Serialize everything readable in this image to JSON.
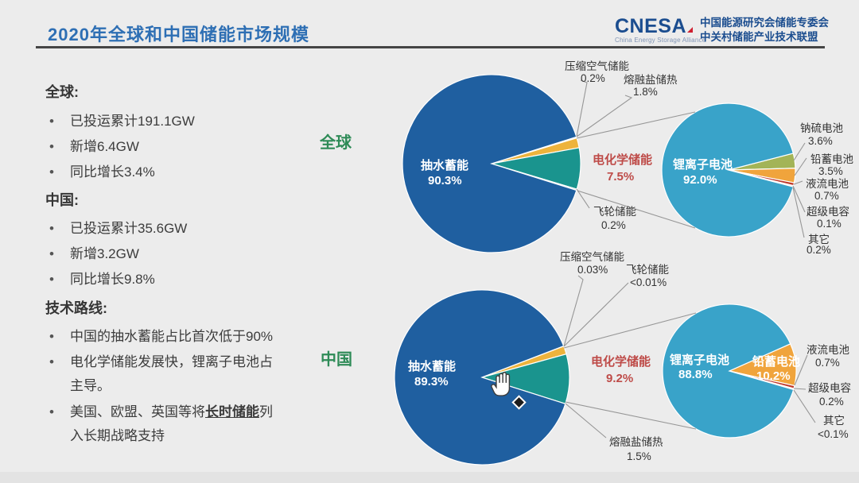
{
  "slide": {
    "title": "2020年全球和中国储能市场规模"
  },
  "logo": {
    "brand": "CNESA",
    "tagline": "China Energy Storage Alliance",
    "org_line1": "中国能源研究会储能专委会",
    "org_line2": "中关村储能产业技术联盟"
  },
  "colors": {
    "title_blue": "#2e6fb4",
    "highlight_red": "#be4b48",
    "group_green": "#2e8b57",
    "pumped_blue": "#1f5fa0",
    "electro_teal": "#1a948e",
    "molten_orange": "#edb33c",
    "lithium_blue": "#39a3c9",
    "nas_olive": "#a3b457",
    "lead_orange": "#f0a43c",
    "flow_red": "#c0392b"
  },
  "left_panel": {
    "global_heading": "全球:",
    "global_bullets": [
      "已投运累计191.1GW",
      "新增6.4GW",
      "同比增长3.4%"
    ],
    "china_heading": "中国:",
    "china_bullets": [
      "已投运累计35.6GW",
      "新增3.2GW",
      "同比增长9.8%"
    ],
    "tech_heading": "技术路线:",
    "tech_bullet1": "中国的抽水蓄能占比首次低于90%",
    "tech_bullet2": "电化学储能发展快，锂离子电池占主导。",
    "tech_bullet3_pre": "美国、欧盟、英国等将",
    "tech_bullet3_em": "长时储能",
    "tech_bullet3_post": "列入长期战略支持"
  },
  "cursor": {
    "icon": "hand-grab-cursor"
  },
  "chart_data": [
    {
      "type": "pie",
      "group_label": "全球",
      "main_pie": {
        "slices": [
          {
            "name": "压缩空气储能",
            "value": 0.2,
            "display": "0.2%",
            "color": "#9ca3af"
          },
          {
            "name": "熔融盐储热",
            "value": 1.8,
            "display": "1.8%",
            "color": "#edb33c"
          },
          {
            "name": "电化学储能",
            "value": 7.5,
            "display": "7.5%",
            "color": "#1a948e"
          },
          {
            "name": "飞轮储能",
            "value": 0.2,
            "display": "0.2%",
            "color": "#9ca3af"
          },
          {
            "name": "抽水蓄能",
            "value": 90.3,
            "display": "90.3%",
            "color": "#1f5fa0"
          }
        ]
      },
      "sub_pie": {
        "slices": [
          {
            "name": "钠硫电池",
            "value": 3.6,
            "display": "3.6%",
            "color": "#a3b457"
          },
          {
            "name": "铅蓄电池",
            "value": 3.5,
            "display": "3.5%",
            "color": "#f0a43c"
          },
          {
            "name": "液流电池",
            "value": 0.7,
            "display": "0.7%",
            "color": "#c0392b"
          },
          {
            "name": "超级电容",
            "value": 0.1,
            "display": "0.1%",
            "color": "#9ca3af"
          },
          {
            "name": "其它",
            "value": 0.2,
            "display": "0.2%",
            "color": "#8a8f98"
          },
          {
            "name": "锂离子电池",
            "value": 92.0,
            "display": "92.0%",
            "color": "#39a3c9"
          }
        ]
      }
    },
    {
      "type": "pie",
      "group_label": "中国",
      "main_pie": {
        "slices": [
          {
            "name": "压缩空气储能",
            "value": 0.03,
            "display": "0.03%",
            "color": "#9ca3af"
          },
          {
            "name": "飞轮储能",
            "value": 0.005,
            "display": "<0.01%",
            "color": "#9ca3af"
          },
          {
            "name": "熔融盐储热",
            "value": 1.5,
            "display": "1.5%",
            "color": "#edb33c"
          },
          {
            "name": "电化学储能",
            "value": 9.2,
            "display": "9.2%",
            "color": "#1a948e"
          },
          {
            "name": "抽水蓄能",
            "value": 89.3,
            "display": "89.3%",
            "color": "#1f5fa0"
          }
        ]
      },
      "sub_pie": {
        "slices": [
          {
            "name": "铅蓄电池",
            "value": 10.2,
            "display": "10.2%",
            "color": "#f0a43c"
          },
          {
            "name": "液流电池",
            "value": 0.7,
            "display": "0.7%",
            "color": "#c0392b"
          },
          {
            "name": "超级电容",
            "value": 0.2,
            "display": "0.2%",
            "color": "#9ca3af"
          },
          {
            "name": "其它",
            "value": 0.05,
            "display": "<0.1%",
            "color": "#8a8f98"
          },
          {
            "name": "锂离子电池",
            "value": 88.8,
            "display": "88.8%",
            "color": "#39a3c9"
          }
        ]
      }
    }
  ]
}
